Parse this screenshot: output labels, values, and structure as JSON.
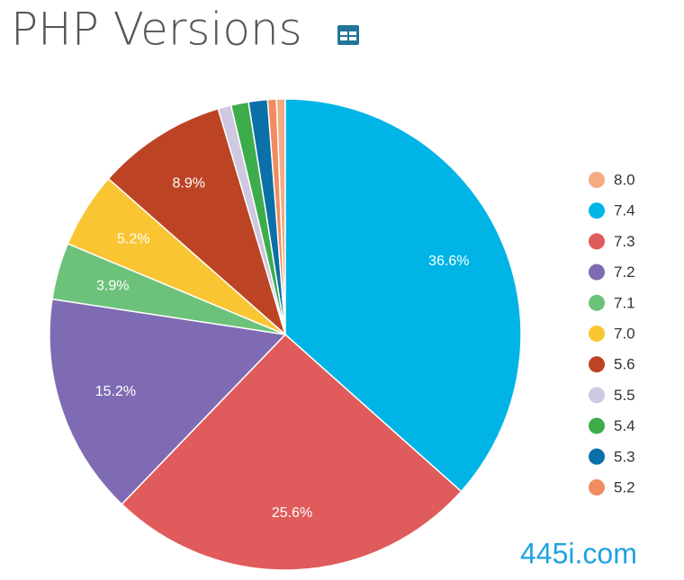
{
  "chart_data": {
    "type": "pie",
    "title": "PHP Versions",
    "categories": [
      "8.0",
      "7.4",
      "7.3",
      "7.2",
      "7.1",
      "7.0",
      "5.6",
      "5.5",
      "5.4",
      "5.3",
      "5.2"
    ],
    "values": [
      0.6,
      36.6,
      25.6,
      15.2,
      3.9,
      5.2,
      8.9,
      0.9,
      1.2,
      1.3,
      0.6
    ],
    "value_labels": [
      null,
      "36.6%",
      "25.6%",
      "15.2%",
      "3.9%",
      "5.2%",
      "8.9%",
      null,
      null,
      null,
      null
    ],
    "colors": [
      "#f4ab84",
      "#00b4e5",
      "#e05b5b",
      "#7f6bb3",
      "#6cc27a",
      "#f9c533",
      "#bc4424",
      "#cfc8e2",
      "#3dad4b",
      "#0b6fa8",
      "#f08c5f"
    ],
    "legend": "right",
    "watermark": "445i.com"
  }
}
